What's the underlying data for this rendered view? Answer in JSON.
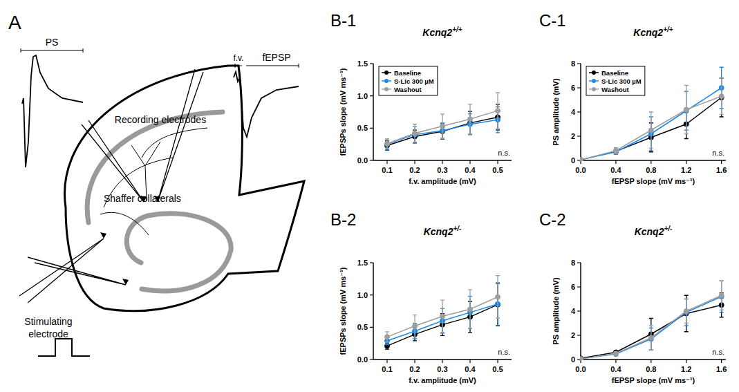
{
  "diagram": {
    "panel": "A",
    "ps_trace": "PS",
    "fiber_volley": "f.v.",
    "fepsp_trace": "fEPSP",
    "recording": "Recording electrodes",
    "pathway": "Shaffer collaterals",
    "stimulating": "Stimulating electrode"
  },
  "chart_data": [
    {
      "type": "line",
      "panel": "B-1",
      "title": "Kcnq2+/+",
      "x_label": "f.v. amplitude (mV)",
      "y_label": "fEPSPs slope (mV ms⁻¹)",
      "x": [
        0.1,
        0.2,
        0.3,
        0.4,
        0.5
      ],
      "xlim": [
        0.05,
        0.55
      ],
      "xticks": [
        0.1,
        0.2,
        0.3,
        0.4,
        0.5
      ],
      "ylim": [
        0,
        1.5
      ],
      "yticks": [
        {
          "value": 0,
          "label": "0.0"
        },
        0.5,
        {
          "value": 1,
          "label": "1.0"
        },
        1.5
      ],
      "legend": "upper left",
      "marker": "circle",
      "annotation": "n.s.",
      "series": [
        {
          "name": "Baseline",
          "color": "#000000",
          "values": [
            0.23,
            0.37,
            0.45,
            0.58,
            0.67
          ],
          "errors": [
            0.07,
            0.1,
            0.12,
            0.18,
            0.2
          ]
        },
        {
          "name": "S-Lic 300 µM",
          "color": "#1e88e5",
          "values": [
            0.25,
            0.4,
            0.46,
            0.56,
            0.63
          ],
          "errors": [
            0.08,
            0.12,
            0.12,
            0.16,
            0.2
          ]
        },
        {
          "name": "Washout",
          "color": "#9e9e9e",
          "values": [
            0.26,
            0.42,
            0.53,
            0.64,
            0.77
          ],
          "errors": [
            0.07,
            0.14,
            0.19,
            0.23,
            0.28
          ]
        }
      ]
    },
    {
      "type": "line",
      "panel": "B-2",
      "title": "Kcnq2+/-",
      "x_label": "f.v. amplitude (mV)",
      "y_label": "fEPSPs slope (mV ms⁻¹)",
      "x": [
        0.1,
        0.2,
        0.3,
        0.4,
        0.5
      ],
      "xlim": [
        0.05,
        0.55
      ],
      "xticks": [
        0.1,
        0.2,
        0.3,
        0.4,
        0.5
      ],
      "ylim": [
        0,
        1.5
      ],
      "yticks": [
        {
          "value": 0,
          "label": "0.0"
        },
        0.5,
        {
          "value": 1,
          "label": "1.0"
        },
        1.5
      ],
      "marker": "circle",
      "annotation": "n.s.",
      "series": [
        {
          "name": "Baseline",
          "color": "#000000",
          "values": [
            0.21,
            0.39,
            0.54,
            0.66,
            0.85
          ],
          "errors": [
            0.05,
            0.1,
            0.17,
            0.24,
            0.33
          ]
        },
        {
          "name": "S-Lic 300 µM",
          "color": "#1e88e5",
          "values": [
            0.29,
            0.44,
            0.6,
            0.73,
            0.86
          ],
          "errors": [
            0.06,
            0.12,
            0.19,
            0.25,
            0.33
          ]
        },
        {
          "name": "Washout",
          "color": "#9e9e9e",
          "values": [
            0.35,
            0.52,
            0.67,
            0.78,
            0.97
          ],
          "errors": [
            0.08,
            0.17,
            0.25,
            0.3,
            0.33
          ]
        }
      ]
    },
    {
      "type": "line",
      "panel": "C-1",
      "title": "Kcnq2+/+",
      "x_label": "fEPSP slope (mV ms⁻¹)",
      "y_label": "PS amplitude (mV)",
      "x": [
        0,
        0.4,
        0.8,
        1.2,
        1.6
      ],
      "xlim": [
        0,
        1.65
      ],
      "xticks": [
        {
          "value": 0,
          "label": "0.0"
        },
        0.4,
        0.8,
        1.2,
        1.6
      ],
      "ylim": [
        0,
        8
      ],
      "yticks": [
        0,
        2,
        4,
        6,
        8
      ],
      "legend": "upper left",
      "marker": "circle",
      "annotation": "n.s.",
      "series": [
        {
          "name": "Baseline",
          "color": "#000000",
          "values": [
            0.05,
            0.75,
            1.9,
            3.0,
            5.2
          ],
          "errors": [
            0.02,
            0.2,
            1.2,
            1.2,
            1.6
          ]
        },
        {
          "name": "S-Lic 300 µM",
          "color": "#1e88e5",
          "values": [
            0.05,
            0.7,
            2.2,
            4.1,
            6.0
          ],
          "errors": [
            0.02,
            0.2,
            1.4,
            1.6,
            1.7
          ]
        },
        {
          "name": "Washout",
          "color": "#9e9e9e",
          "values": [
            0.05,
            0.8,
            2.5,
            4.2,
            5.3
          ],
          "errors": [
            0.02,
            0.25,
            1.5,
            2.0,
            1.5
          ]
        }
      ]
    },
    {
      "type": "line",
      "panel": "C-2",
      "title": "Kcnq2+/-",
      "x_label": "fEPSP slope (mV ms⁻¹)",
      "y_label": "PS amplitude (mV)",
      "x": [
        0,
        0.4,
        0.8,
        1.2,
        1.6
      ],
      "xlim": [
        0,
        1.65
      ],
      "xticks": [
        {
          "value": 0,
          "label": "0.0"
        },
        0.4,
        0.8,
        1.2,
        1.6
      ],
      "ylim": [
        0,
        8
      ],
      "yticks": [
        0,
        2,
        4,
        6,
        8
      ],
      "marker": "circle",
      "annotation": "n.s.",
      "series": [
        {
          "name": "Baseline",
          "color": "#000000",
          "values": [
            0.1,
            0.6,
            2.1,
            3.8,
            4.5
          ],
          "errors": [
            0.02,
            0.1,
            1.3,
            1.5,
            1.0
          ]
        },
        {
          "name": "S-Lic 300 µM",
          "color": "#1e88e5",
          "values": [
            0.05,
            0.45,
            1.7,
            3.9,
            5.2
          ],
          "errors": [
            0.02,
            0.1,
            0.9,
            1.1,
            1.3
          ]
        },
        {
          "name": "Washout",
          "color": "#9e9e9e",
          "values": [
            0.05,
            0.5,
            1.8,
            4.0,
            5.3
          ],
          "errors": [
            0.02,
            0.1,
            1.0,
            1.0,
            1.2
          ]
        }
      ]
    }
  ]
}
